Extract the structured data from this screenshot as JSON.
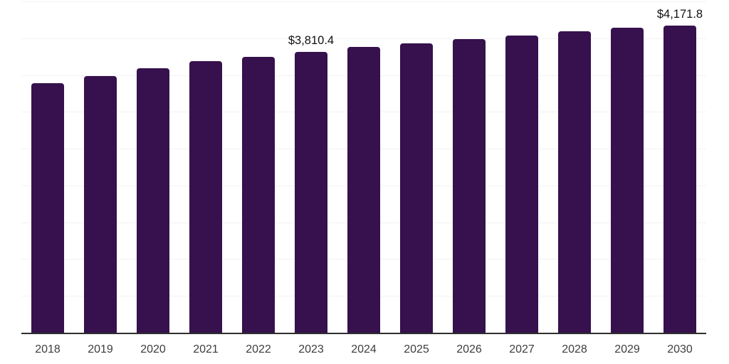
{
  "chart_data": {
    "type": "bar",
    "categories": [
      "2018",
      "2019",
      "2020",
      "2021",
      "2022",
      "2023",
      "2024",
      "2025",
      "2026",
      "2027",
      "2028",
      "2029",
      "2030"
    ],
    "values": [
      3390,
      3490,
      3595,
      3690,
      3745,
      3810.4,
      3880,
      3930,
      3990,
      4040,
      4095,
      4140,
      4171.8
    ],
    "value_labels": [
      {
        "category": "2023",
        "text": "$3,810.4"
      },
      {
        "category": "2030",
        "text": "$4,171.8"
      }
    ],
    "ylim": [
      0,
      4500
    ],
    "gridline_count": 9,
    "grid": "horizontal-light",
    "legend": "none",
    "value_prefix": "$",
    "colors": {
      "bar": "#36114d",
      "gridline": "#f2f2f2",
      "axis": "#2e2e2e",
      "tick_text": "#3d3d3d",
      "value_label_text": "#111111",
      "background": "#ffffff"
    }
  }
}
